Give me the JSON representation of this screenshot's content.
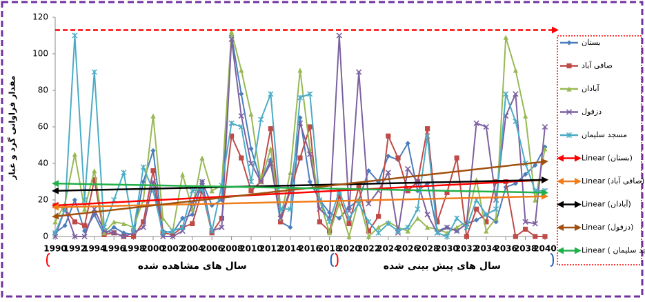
{
  "chart_data": {
    "type": "line",
    "y_label": "مقدار فراوانی گرد و غبار",
    "x": [
      1990,
      1991,
      1992,
      1993,
      1994,
      1995,
      1996,
      1997,
      1998,
      1999,
      2000,
      2001,
      2002,
      2003,
      2004,
      2005,
      2006,
      2007,
      2008,
      2009,
      2010,
      2011,
      2012,
      2013,
      2014,
      2015,
      2016,
      2017,
      2018,
      2019,
      2020,
      2021,
      2022,
      2023,
      2024,
      2025,
      2026,
      2027,
      2028,
      2029,
      2030,
      2031,
      2032,
      2033,
      2034,
      2035,
      2036,
      2037,
      2038,
      2039,
      2040
    ],
    "xlim": [
      1990,
      2040
    ],
    "xticks": [
      1990,
      1992,
      1994,
      1996,
      1998,
      2000,
      2002,
      2004,
      2006,
      2008,
      2010,
      2012,
      2014,
      2016,
      2018,
      2020,
      2022,
      2024,
      2026,
      2028,
      2030,
      2032,
      2034,
      2036,
      2038,
      2040
    ],
    "ylim": [
      0,
      120
    ],
    "yticks": [
      0,
      20,
      40,
      60,
      80,
      100,
      120
    ],
    "grid": false,
    "series": [
      {
        "name": "بستان",
        "color": "#4a7ebb",
        "marker": "diamond",
        "values": [
          2,
          6,
          20,
          3,
          12,
          1,
          5,
          2,
          1,
          30,
          47,
          3,
          2,
          10,
          12,
          30,
          17,
          20,
          110,
          78,
          48,
          30,
          42,
          8,
          5,
          65,
          30,
          20,
          13,
          10,
          16,
          20,
          36,
          30,
          44,
          42,
          51,
          25,
          29,
          3,
          5,
          3,
          7,
          9,
          12,
          8,
          27,
          29,
          34,
          39,
          49
        ]
      },
      {
        "name": "صافی آباد",
        "color": "#be4b48",
        "marker": "square",
        "values": [
          17,
          15,
          8,
          6,
          31,
          1,
          2,
          0,
          0,
          8,
          36,
          2,
          1,
          5,
          7,
          25,
          2,
          10,
          55,
          43,
          25,
          30,
          59,
          8,
          25,
          43,
          60,
          8,
          3,
          22,
          7,
          27,
          3,
          11,
          55,
          43,
          25,
          30,
          59,
          8,
          24,
          43,
          0,
          15,
          8,
          30,
          30,
          0,
          4,
          0,
          0
        ]
      },
      {
        "name": "آبادان",
        "color": "#98b954",
        "marker": "triangle",
        "values": [
          8,
          18,
          45,
          15,
          36,
          2,
          8,
          7,
          5,
          20,
          66,
          10,
          3,
          34,
          15,
          43,
          25,
          28,
          112,
          91,
          67,
          30,
          48,
          10,
          35,
          91,
          48,
          20,
          2,
          18,
          0,
          20,
          0,
          5,
          8,
          5,
          3,
          10,
          5,
          4,
          2,
          5,
          8,
          31,
          3,
          10,
          109,
          91,
          66,
          20,
          48
        ]
      },
      {
        "name": "دزفول",
        "color": "#7d60a0",
        "marker": "x",
        "values": [
          0,
          15,
          0,
          0,
          15,
          3,
          2,
          0,
          2,
          5,
          30,
          0,
          0,
          3,
          18,
          30,
          3,
          5,
          108,
          66,
          40,
          30,
          40,
          10,
          26,
          62,
          45,
          15,
          10,
          110,
          14,
          90,
          18,
          25,
          35,
          2,
          37,
          30,
          12,
          2,
          5,
          3,
          7,
          62,
          60,
          20,
          66,
          78,
          8,
          7,
          60
        ]
      },
      {
        "name": "مسجد سلیمان",
        "color": "#4bacc6",
        "marker": "star",
        "values": [
          2,
          15,
          110,
          20,
          90,
          5,
          20,
          35,
          3,
          38,
          25,
          2,
          3,
          5,
          25,
          26,
          3,
          28,
          62,
          60,
          30,
          64,
          78,
          15,
          15,
          76,
          78,
          20,
          8,
          25,
          10,
          18,
          8,
          2,
          7,
          3,
          5,
          15,
          55,
          2,
          0,
          10,
          5,
          20,
          12,
          15,
          78,
          63,
          40,
          25,
          25
        ]
      }
    ],
    "trendlines": [
      {
        "name": "Linear (بستان)",
        "color": "#ff0000",
        "x": [
          1990,
          2040
        ],
        "values": [
          17,
          31
        ]
      },
      {
        "name": "Linear (صافی آباد)",
        "color": "#f07c1a",
        "x": [
          1990,
          2040
        ],
        "values": [
          16,
          22
        ]
      },
      {
        "name": "Linear (آبادان)",
        "color": "#000000",
        "x": [
          1990,
          2040
        ],
        "values": [
          25,
          31
        ]
      },
      {
        "name": "Linear (دزفول)",
        "color": "#a0500f",
        "x": [
          1990,
          2040
        ],
        "values": [
          11,
          41
        ]
      },
      {
        "name": "Linear ( مسجد سلیمان)",
        "color": "#22b04a",
        "x": [
          1990,
          2040
        ],
        "values": [
          29,
          24
        ]
      }
    ],
    "reference_line": {
      "value": 113,
      "color": "#ff0000"
    },
    "periods": [
      {
        "label": "سال های مشاهده شده",
        "range": [
          1990,
          2018
        ],
        "color": "#ff0000"
      },
      {
        "label": "سال های پیش بینی شده",
        "range": [
          2019,
          2040
        ],
        "color": "#1f5fbf"
      }
    ]
  }
}
